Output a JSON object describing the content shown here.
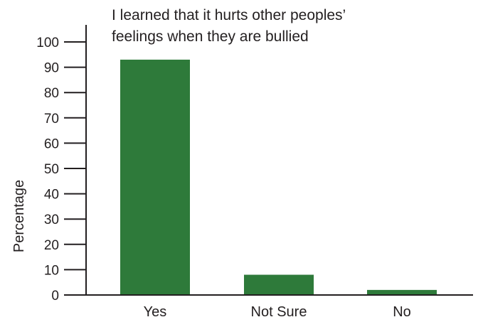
{
  "chart_data": {
    "type": "bar",
    "title_lines": [
      "I learned that it hurts other peoples’",
      "feelings when they are bullied"
    ],
    "xlabel": "",
    "ylabel": "Percentage",
    "categories": [
      "Yes",
      "Not Sure",
      "No"
    ],
    "values": [
      93,
      8,
      2
    ],
    "ylim": [
      0,
      100
    ],
    "yticks": [
      0,
      10,
      20,
      30,
      40,
      50,
      60,
      70,
      80,
      90,
      100
    ],
    "bar_color": "#2e7a3a",
    "grid": false,
    "legend": "none"
  }
}
